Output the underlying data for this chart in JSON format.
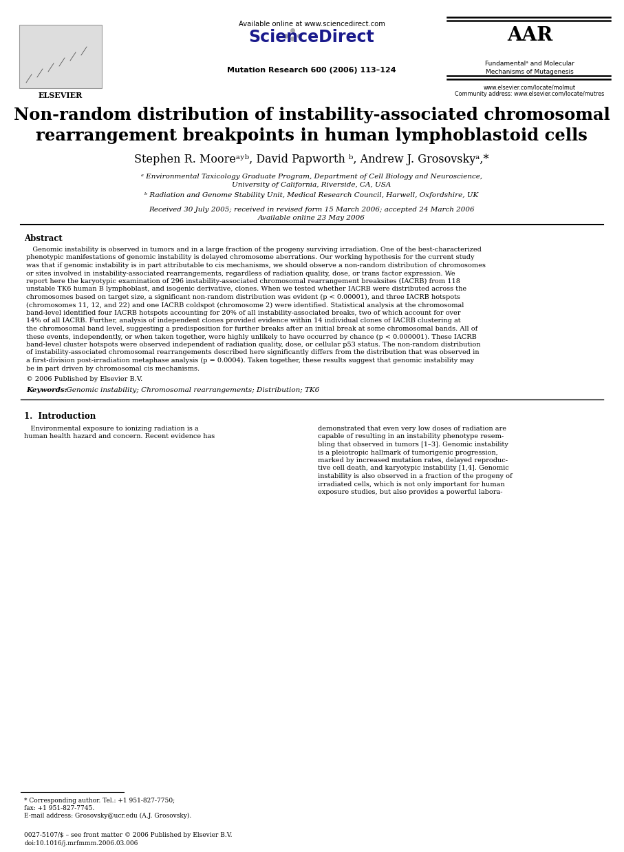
{
  "title": "Non-random distribution of instability-associated chromosomal\nrearrangement breakpoints in human lymphoblastoid cells",
  "authors": "Stephen R. Mooreᵃʸᵇ, David Papworth ᵇ, Andrew J. Grosovskyᵃ,*",
  "affil_a": "ᵃ Environmental Taxicology Graduate Program, Department of Cell Biology and Neuroscience,\nUniversity of California, Riverside, CA, USA",
  "affil_b": "ᵇ Radiation and Genome Stability Unit, Medical Research Council, Harwell, Oxfordshire, UK",
  "dates": "Received 30 July 2005; received in revised form 15 March 2006; accepted 24 March 2006\nAvailable online 23 May 2006",
  "journal": "Mutation Research 600 (2006) 113–124",
  "available_online": "Available online at www.sciencedirect.com",
  "journal_subtitle_line1": "Fundamentalᵃ and Molecular",
  "journal_subtitle_line2": "Mechanisms of Mutagenesis",
  "elsevier": "ELSEVIER",
  "url1": "www.elsevier.com/locate/molmut",
  "url2": "Community address: www.elsevier.com/locate/mutres",
  "abstract_title": "Abstract",
  "abstract_lines": [
    "   Genomic instability is observed in tumors and in a large fraction of the progeny surviving irradiation. One of the best-characterized",
    "phenotypic manifestations of genomic instability is delayed chromosome aberrations. Our working hypothesis for the current study",
    "was that if genomic instability is in part attributable to cis mechanisms, we should observe a non-random distribution of chromosomes",
    "or sites involved in instability-associated rearrangements, regardless of radiation quality, dose, or trans factor expression. We",
    "report here the karyotypic examination of 296 instability-associated chromosomal rearrangement breaksites (IACRB) from 118",
    "unstable TK6 human B lymphoblast, and isogenic derivative, clones. When we tested whether IACRB were distributed across the",
    "chromosomes based on target size, a significant non-random distribution was evident (p < 0.00001), and three IACRB hotspots",
    "(chromosomes 11, 12, and 22) and one IACRB coldspot (chromosome 2) were identified. Statistical analysis at the chromosomal",
    "band-level identified four IACRB hotspots accounting for 20% of all instability-associated breaks, two of which account for over",
    "14% of all IACRB. Further, analysis of independent clones provided evidence within 14 individual clones of IACRB clustering at",
    "the chromosomal band level, suggesting a predisposition for further breaks after an initial break at some chromosomal bands. All of",
    "these events, independently, or when taken together, were highly unlikely to have occurred by chance (p < 0.000001). These IACRB",
    "band-level cluster hotspots were observed independent of radiation quality, dose, or cellular p53 status. The non-random distribution",
    "of instability-associated chromosomal rearrangements described here significantly differs from the distribution that was observed in",
    "a first-division post-irradiation metaphase analysis (p = 0.0004). Taken together, these results suggest that genomic instability may",
    "be in part driven by chromosomal cis mechanisms."
  ],
  "copyright": "© 2006 Published by Elsevier B.V.",
  "keywords_label": "Keywords:",
  "keywords": "  Genomic instability; Chromosomal rearrangements; Distribution; TK6",
  "section1_title": "1.  Introduction",
  "intro_col1_lines": [
    "   Environmental exposure to ionizing radiation is a",
    "human health hazard and concern. Recent evidence has"
  ],
  "intro_col2_lines": [
    "demonstrated that even very low doses of radiation are",
    "capable of resulting in an instability phenotype resem-",
    "bling that observed in tumors [1–3]. Genomic instability",
    "is a pleiotropic hallmark of tumorigenic progression,",
    "marked by increased mutation rates, delayed reproduc-",
    "tive cell death, and karyotypic instability [1,4]. Genomic",
    "instability is also observed in a fraction of the progeny of",
    "irradiated cells, which is not only important for human",
    "exposure studies, but also provides a powerful labora-"
  ],
  "footnote_lines": [
    "* Corresponding author. Tel.: +1 951-827-7750;",
    "fax: +1 951-827-7745.",
    "E-mail address: Grosovsky@ucr.edu (A.J. Grosovsky)."
  ],
  "footer_line1": "0027-5107/$ – see front matter © 2006 Published by Elsevier B.V.",
  "footer_line2": "doi:10.1016/j.mrfmmm.2006.03.006",
  "background_color": "#ffffff",
  "text_color": "#000000"
}
